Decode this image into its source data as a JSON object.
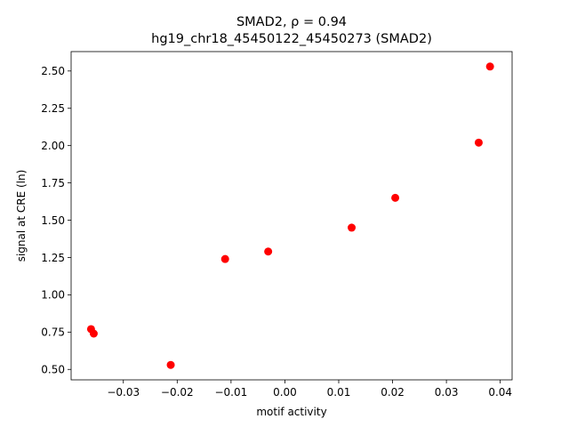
{
  "chart_data": {
    "type": "scatter",
    "title_line1": "SMAD2, ρ = 0.94",
    "title_line2": "hg19_chr18_45450122_45450273 (SMAD2)",
    "xlabel": "motif activity",
    "ylabel": "signal at CRE (ln)",
    "xlim": [
      -0.0397,
      0.0422
    ],
    "ylim": [
      0.43,
      2.63
    ],
    "xticks": [
      {
        "value": -0.03,
        "label": "−0.03"
      },
      {
        "value": -0.02,
        "label": "−0.02"
      },
      {
        "value": -0.01,
        "label": "−0.01"
      },
      {
        "value": 0.0,
        "label": "0.00"
      },
      {
        "value": 0.01,
        "label": "0.01"
      },
      {
        "value": 0.02,
        "label": "0.02"
      },
      {
        "value": 0.03,
        "label": "0.03"
      },
      {
        "value": 0.04,
        "label": "0.04"
      }
    ],
    "yticks": [
      {
        "value": 0.5,
        "label": "0.50"
      },
      {
        "value": 0.75,
        "label": "0.75"
      },
      {
        "value": 1.0,
        "label": "1.00"
      },
      {
        "value": 1.25,
        "label": "1.25"
      },
      {
        "value": 1.5,
        "label": "1.50"
      },
      {
        "value": 1.75,
        "label": "1.75"
      },
      {
        "value": 2.0,
        "label": "2.00"
      },
      {
        "value": 2.25,
        "label": "2.25"
      },
      {
        "value": 2.5,
        "label": "2.50"
      }
    ],
    "point_color": "#ff0000",
    "grid": false,
    "points": [
      {
        "x": -0.036,
        "y": 0.77
      },
      {
        "x": -0.0355,
        "y": 0.74
      },
      {
        "x": -0.0212,
        "y": 0.53
      },
      {
        "x": -0.0111,
        "y": 1.24
      },
      {
        "x": -0.0031,
        "y": 1.29
      },
      {
        "x": 0.0124,
        "y": 1.45
      },
      {
        "x": 0.0205,
        "y": 1.65
      },
      {
        "x": 0.036,
        "y": 2.02
      },
      {
        "x": 0.0381,
        "y": 2.53
      }
    ]
  }
}
